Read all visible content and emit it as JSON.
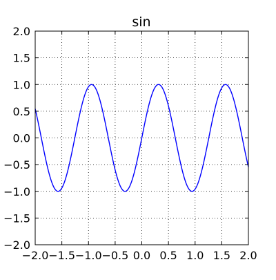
{
  "chart_data": {
    "type": "line",
    "title": "sin",
    "xlabel": "",
    "ylabel": "",
    "xlim": [
      -2.0,
      2.0
    ],
    "ylim": [
      -2.0,
      2.0
    ],
    "grid": true,
    "grid_style": "dotted",
    "x_ticks": [
      -2.0,
      -1.5,
      -1.0,
      -0.5,
      0.0,
      0.5,
      1.0,
      1.5,
      2.0
    ],
    "x_tick_labels": [
      "−2.0",
      "−1.5",
      "−1.0",
      "−0.5",
      "0.0",
      "0.5",
      "1.0",
      "1.5",
      "2.0"
    ],
    "y_ticks": [
      -2.0,
      -1.5,
      -1.0,
      -0.5,
      0.0,
      0.5,
      1.0,
      1.5,
      2.0
    ],
    "y_tick_labels": [
      "−2.0",
      "−1.5",
      "−1.0",
      "−0.5",
      "0.0",
      "0.5",
      "1.0",
      "1.5",
      "2.0"
    ],
    "series": [
      {
        "color": "#0000ff",
        "function": "sin",
        "amplitude": 1.0,
        "frequency": 5.0,
        "x_range": [
          -2.0,
          2.0
        ]
      }
    ]
  }
}
